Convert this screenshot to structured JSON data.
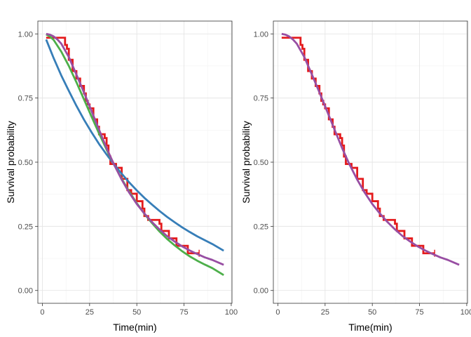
{
  "chart_data": [
    {
      "type": "line",
      "xlabel": "Time(min)",
      "ylabel": "Survival probability",
      "xlim": [
        -2.4,
        100.4
      ],
      "ylim": [
        -0.05,
        1.05
      ],
      "x_ticks": [
        0,
        25,
        50,
        75,
        100
      ],
      "x_tick_labels": [
        "0",
        "25",
        "50",
        "75",
        "100"
      ],
      "y_ticks": [
        0,
        0.25,
        0.5,
        0.75,
        1.0
      ],
      "y_tick_labels": [
        "0.00",
        "0.25",
        "0.50",
        "0.75",
        "1.00"
      ],
      "grid": true,
      "series": [
        {
          "color": "#e41a1c",
          "kind": "step",
          "x": [
            2,
            11,
            12,
            13,
            14,
            16,
            18,
            20,
            22,
            23,
            24,
            25,
            27,
            29,
            30,
            33,
            34,
            35,
            36,
            39,
            42,
            45,
            47,
            50,
            53,
            54,
            56,
            59,
            62,
            63,
            67,
            71,
            77,
            83
          ],
          "y": [
            0.985,
            0.985,
            0.957,
            0.942,
            0.899,
            0.855,
            0.826,
            0.797,
            0.768,
            0.739,
            0.725,
            0.71,
            0.667,
            0.638,
            0.609,
            0.594,
            0.565,
            0.522,
            0.493,
            0.478,
            0.435,
            0.391,
            0.377,
            0.348,
            0.319,
            0.29,
            0.275,
            0.275,
            0.26,
            0.232,
            0.203,
            0.174,
            0.145,
            0.145
          ]
        },
        {
          "color": "#377eb8",
          "kind": "line",
          "x": [
            2,
            6,
            10,
            14,
            18,
            22,
            26,
            30,
            34,
            38,
            42,
            46,
            50,
            54,
            58,
            62,
            66,
            70,
            74,
            78,
            82,
            86,
            90,
            96
          ],
          "y": [
            0.978,
            0.905,
            0.838,
            0.778,
            0.72,
            0.666,
            0.617,
            0.571,
            0.53,
            0.491,
            0.455,
            0.421,
            0.39,
            0.361,
            0.335,
            0.31,
            0.287,
            0.266,
            0.246,
            0.228,
            0.211,
            0.196,
            0.181,
            0.155
          ]
        },
        {
          "color": "#4daf4a",
          "kind": "line",
          "x": [
            2,
            4,
            6,
            10,
            14,
            18,
            22,
            26,
            30,
            34,
            38,
            42,
            46,
            50,
            54,
            58,
            62,
            66,
            70,
            74,
            78,
            82,
            86,
            90,
            96
          ],
          "y": [
            0.998,
            0.99,
            0.976,
            0.931,
            0.875,
            0.812,
            0.745,
            0.678,
            0.612,
            0.549,
            0.49,
            0.435,
            0.385,
            0.34,
            0.299,
            0.263,
            0.23,
            0.201,
            0.176,
            0.153,
            0.133,
            0.116,
            0.101,
            0.087,
            0.06
          ]
        },
        {
          "color": "#984ea3",
          "kind": "line",
          "x": [
            2,
            4,
            6,
            8,
            10,
            14,
            18,
            22,
            26,
            30,
            34,
            38,
            42,
            46,
            50,
            54,
            58,
            62,
            66,
            70,
            74,
            78,
            82,
            86,
            90,
            96
          ],
          "y": [
            1.0,
            0.997,
            0.99,
            0.978,
            0.962,
            0.91,
            0.842,
            0.772,
            0.7,
            0.627,
            0.555,
            0.49,
            0.432,
            0.381,
            0.337,
            0.3,
            0.267,
            0.238,
            0.212,
            0.191,
            0.172,
            0.156,
            0.142,
            0.129,
            0.119,
            0.1
          ]
        }
      ]
    },
    {
      "type": "line",
      "xlabel": "Time(min)",
      "ylabel": "Survival probability",
      "xlim": [
        -2.4,
        100.4
      ],
      "ylim": [
        -0.05,
        1.05
      ],
      "x_ticks": [
        0,
        25,
        50,
        75,
        100
      ],
      "x_tick_labels": [
        "0",
        "25",
        "50",
        "75",
        "100"
      ],
      "y_ticks": [
        0,
        0.25,
        0.5,
        0.75,
        1.0
      ],
      "y_tick_labels": [
        "0.00",
        "0.25",
        "0.50",
        "0.75",
        "1.00"
      ],
      "grid": true,
      "series": [
        {
          "color": "#e41a1c",
          "kind": "step",
          "x": [
            2,
            11,
            12,
            13,
            14,
            16,
            18,
            20,
            22,
            23,
            24,
            25,
            27,
            29,
            30,
            33,
            34,
            35,
            36,
            39,
            42,
            45,
            47,
            50,
            53,
            54,
            56,
            59,
            62,
            63,
            67,
            71,
            77,
            83
          ],
          "y": [
            0.985,
            0.985,
            0.957,
            0.942,
            0.899,
            0.855,
            0.826,
            0.797,
            0.768,
            0.739,
            0.725,
            0.71,
            0.667,
            0.638,
            0.609,
            0.594,
            0.565,
            0.522,
            0.493,
            0.478,
            0.435,
            0.391,
            0.377,
            0.348,
            0.319,
            0.29,
            0.275,
            0.275,
            0.26,
            0.232,
            0.203,
            0.174,
            0.145,
            0.145
          ]
        },
        {
          "color": "#984ea3",
          "kind": "line",
          "x": [
            2,
            4,
            6,
            8,
            10,
            14,
            18,
            22,
            26,
            30,
            34,
            38,
            42,
            46,
            50,
            54,
            58,
            62,
            66,
            70,
            74,
            78,
            82,
            86,
            90,
            96
          ],
          "y": [
            1.0,
            0.997,
            0.99,
            0.978,
            0.962,
            0.91,
            0.842,
            0.772,
            0.7,
            0.627,
            0.555,
            0.49,
            0.432,
            0.381,
            0.337,
            0.3,
            0.267,
            0.238,
            0.212,
            0.191,
            0.172,
            0.156,
            0.142,
            0.129,
            0.119,
            0.1
          ]
        }
      ]
    }
  ]
}
